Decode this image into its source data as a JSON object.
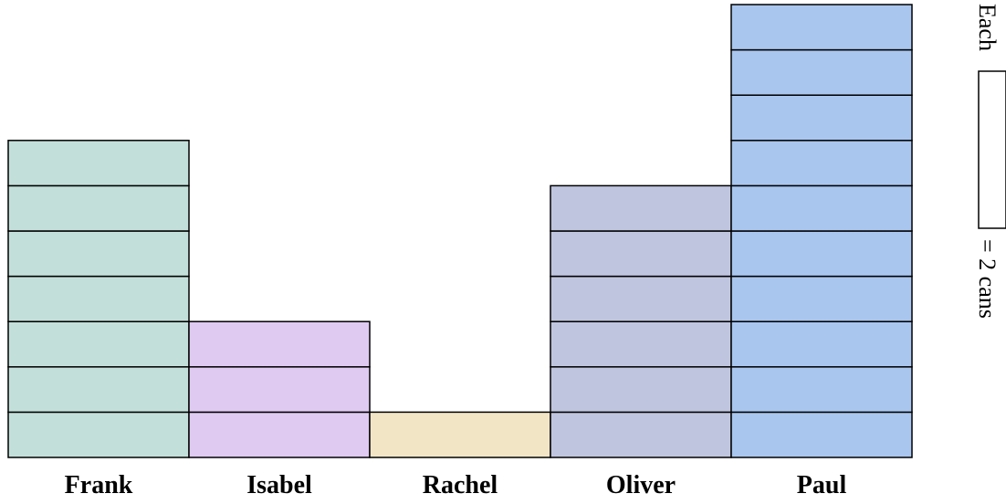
{
  "chart_data": {
    "type": "bar",
    "title": "",
    "xlabel": "",
    "ylabel": "",
    "unit_note": "pictograph: stacked unit blocks",
    "categories": [
      "Frank",
      "Isabel",
      "Rachel",
      "Oliver",
      "Paul"
    ],
    "blocks": [
      7,
      3,
      1,
      6,
      10
    ],
    "values": [
      14,
      6,
      2,
      12,
      20
    ],
    "colors": [
      "#c3dfd9",
      "#dfcaf2",
      "#f2e5c6",
      "#c0c5df",
      "#a9c6ef"
    ],
    "legend": {
      "prefix": "Each",
      "suffix": "= 2 cans",
      "placement": "right"
    }
  }
}
